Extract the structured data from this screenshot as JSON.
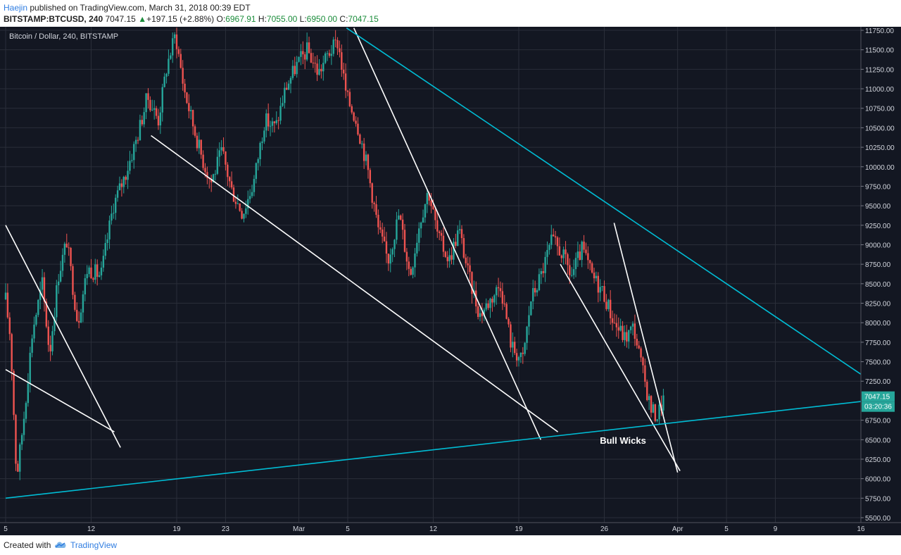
{
  "header": {
    "author": "Haejin",
    "published_text": "published on TradingView.com, March 31, 2018 00:39 EDT",
    "symbol": "BITSTAMP:BTCUSD, 240",
    "last": "7047.15",
    "change_arrow": "▲",
    "change": "+197.15 (+2.88%)",
    "o_label": "O:",
    "o_value": "6967.91",
    "h_label": "H:",
    "h_value": "7055.00",
    "l_label": "L:",
    "l_value": "6950.00",
    "c_label": "C:",
    "c_value": "7047.15"
  },
  "footer": {
    "created_with": "Created with",
    "brand": "TradingView"
  },
  "colors": {
    "background": "#131722",
    "grid": "#2a2e39",
    "up": "#26a69a",
    "down": "#ef5350",
    "trendline": "#ffffff",
    "channel": "#00bcd4",
    "price_tag": "#26a69a",
    "axis_text": "#d1d4dc"
  },
  "chart_data": {
    "type": "candlestick",
    "title": "Bitcoin / Dollar, 240, BITSTAMP",
    "ylim": [
      5500,
      11750
    ],
    "y_ticks": [
      "11750.00",
      "11500.00",
      "11250.00",
      "11000.00",
      "10750.00",
      "10500.00",
      "10250.00",
      "10000.00",
      "9750.00",
      "9500.00",
      "9250.00",
      "9000.00",
      "8750.00",
      "8500.00",
      "8250.00",
      "8000.00",
      "7750.00",
      "7500.00",
      "7250.00",
      "6750.00",
      "6500.00",
      "6250.00",
      "6000.00",
      "5750.00",
      "5500.00"
    ],
    "x_ticks": [
      "5",
      "12",
      "19",
      "23",
      "Mar",
      "5",
      "12",
      "19",
      "26",
      "Apr",
      "5",
      "9",
      "16"
    ],
    "x_tick_days": [
      5,
      12,
      19,
      23,
      29,
      33,
      40,
      47,
      54,
      60,
      64,
      68,
      75
    ],
    "x_range_days": [
      5,
      75
    ],
    "price_tag": "7047.15",
    "countdown": "03:20:36",
    "annotation": "Bull Wicks",
    "anchors": [
      [
        5.0,
        8300
      ],
      [
        5.4,
        7800
      ],
      [
        5.9,
        6000
      ],
      [
        6.5,
        6800
      ],
      [
        7.2,
        7900
      ],
      [
        8.0,
        8500
      ],
      [
        8.6,
        7600
      ],
      [
        9.3,
        8600
      ],
      [
        10.0,
        9050
      ],
      [
        10.9,
        8000
      ],
      [
        11.7,
        8700
      ],
      [
        12.8,
        8600
      ],
      [
        13.8,
        9500
      ],
      [
        14.8,
        9900
      ],
      [
        15.8,
        10400
      ],
      [
        16.6,
        10900
      ],
      [
        17.5,
        10600
      ],
      [
        18.2,
        11300
      ],
      [
        18.9,
        11700
      ],
      [
        19.6,
        11000
      ],
      [
        20.4,
        10500
      ],
      [
        21.1,
        10100
      ],
      [
        21.8,
        9800
      ],
      [
        22.7,
        10200
      ],
      [
        23.5,
        9700
      ],
      [
        24.4,
        9400
      ],
      [
        25.3,
        9800
      ],
      [
        26.2,
        10600
      ],
      [
        27.1,
        10500
      ],
      [
        27.9,
        11000
      ],
      [
        28.8,
        11300
      ],
      [
        29.7,
        11500
      ],
      [
        30.6,
        11200
      ],
      [
        31.4,
        11450
      ],
      [
        32.2,
        11600
      ],
      [
        32.9,
        10900
      ],
      [
        33.7,
        10600
      ],
      [
        34.6,
        10000
      ],
      [
        35.5,
        9200
      ],
      [
        36.3,
        8800
      ],
      [
        37.2,
        9400
      ],
      [
        38.1,
        8600
      ],
      [
        38.9,
        9300
      ],
      [
        39.6,
        9700
      ],
      [
        40.4,
        9100
      ],
      [
        41.3,
        8800
      ],
      [
        42.1,
        9200
      ],
      [
        42.9,
        8600
      ],
      [
        43.8,
        8100
      ],
      [
        44.7,
        8300
      ],
      [
        45.5,
        8500
      ],
      [
        46.4,
        7700
      ],
      [
        47.3,
        7500
      ],
      [
        48.0,
        8300
      ],
      [
        48.8,
        8600
      ],
      [
        49.7,
        9050
      ],
      [
        50.5,
        8900
      ],
      [
        51.3,
        8600
      ],
      [
        52.2,
        8950
      ],
      [
        53.0,
        8600
      ],
      [
        53.9,
        8400
      ],
      [
        54.8,
        8000
      ],
      [
        55.7,
        7800
      ],
      [
        56.4,
        7950
      ],
      [
        57.1,
        7400
      ],
      [
        57.8,
        6900
      ],
      [
        58.3,
        6800
      ],
      [
        58.9,
        7047
      ]
    ],
    "trendlines": [
      {
        "color": "white",
        "from": [
          5.0,
          9250
        ],
        "to": [
          14.4,
          6400
        ]
      },
      {
        "color": "white",
        "from": [
          5.0,
          7400
        ],
        "to": [
          13.9,
          6600
        ]
      },
      {
        "color": "white",
        "from": [
          16.9,
          10400
        ],
        "to": [
          50.2,
          6600
        ]
      },
      {
        "color": "white",
        "from": [
          33.5,
          11780
        ],
        "to": [
          48.8,
          6500
        ]
      },
      {
        "color": "white",
        "from": [
          50.4,
          8750
        ],
        "to": [
          60.2,
          6100
        ]
      },
      {
        "color": "white",
        "from": [
          54.8,
          9280
        ],
        "to": [
          60.0,
          6080
        ]
      },
      {
        "color": "cyan",
        "from": [
          5.0,
          5750
        ],
        "to": [
          75.0,
          6990
        ]
      },
      {
        "color": "cyan",
        "from": [
          32.9,
          11780
        ],
        "to": [
          75.0,
          7340
        ]
      }
    ]
  }
}
